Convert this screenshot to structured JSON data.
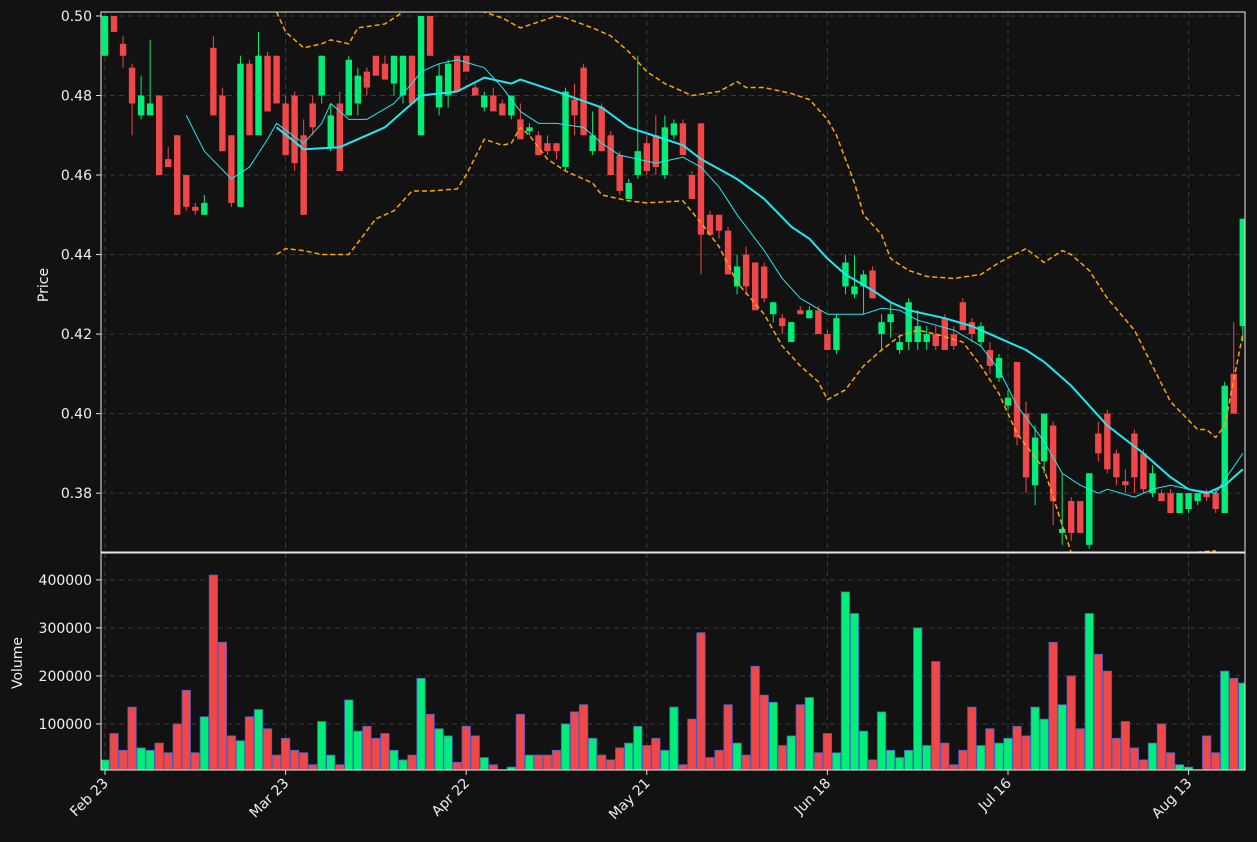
{
  "chart_data": [
    {
      "type": "candlestick",
      "ylabel": "Price",
      "categories": [
        "Feb 23",
        null,
        null,
        null,
        null,
        null,
        null,
        null,
        null,
        null,
        null,
        null,
        null,
        null,
        null,
        null,
        null,
        null,
        null,
        null,
        "Mar 23",
        null,
        null,
        null,
        null,
        null,
        null,
        null,
        null,
        null,
        null,
        null,
        null,
        null,
        null,
        null,
        null,
        null,
        null,
        null,
        "Apr 22",
        null,
        null,
        null,
        null,
        null,
        null,
        null,
        null,
        null,
        null,
        null,
        null,
        null,
        null,
        null,
        null,
        null,
        null,
        null,
        "May 21",
        null,
        null,
        null,
        null,
        null,
        null,
        null,
        null,
        null,
        null,
        null,
        null,
        null,
        null,
        null,
        null,
        null,
        null,
        null,
        "Jun 18",
        null,
        null,
        null,
        null,
        null,
        null,
        null,
        null,
        null,
        null,
        null,
        null,
        null,
        null,
        null,
        null,
        null,
        null,
        null,
        "Jul 16",
        null,
        null,
        null,
        null,
        null,
        null,
        null,
        null,
        null,
        null,
        null,
        null,
        null,
        null,
        null,
        null,
        null,
        null,
        null,
        "Aug 13",
        null,
        null,
        null,
        null,
        null,
        null
      ],
      "open": [
        0.49,
        0.5,
        0.493,
        0.487,
        0.475,
        0.475,
        0.48,
        0.464,
        0.47,
        0.46,
        0.452,
        0.45,
        0.492,
        0.48,
        0.47,
        0.452,
        0.488,
        0.47,
        0.49,
        0.49,
        0.478,
        0.48,
        0.47,
        0.478,
        0.48,
        0.467,
        0.478,
        0.475,
        0.478,
        0.486,
        0.49,
        0.488,
        0.483,
        0.48,
        0.49,
        0.47,
        0.5,
        0.477,
        0.48,
        0.49,
        0.49,
        0.482,
        0.477,
        0.48,
        0.478,
        0.475,
        0.474,
        0.471,
        0.47,
        0.468,
        0.468,
        0.462,
        0.479,
        0.487,
        0.466,
        0.477,
        0.47,
        0.465,
        0.454,
        0.46,
        0.468,
        0.47,
        0.46,
        0.47,
        0.473,
        0.46,
        0.473,
        0.45,
        0.45,
        0.446,
        0.432,
        0.44,
        0.438,
        0.437,
        0.425,
        0.424,
        0.418,
        0.426,
        0.424,
        0.426,
        0.42,
        0.416,
        0.432,
        0.43,
        0.432,
        0.436,
        0.42,
        0.423,
        0.416,
        0.418,
        0.418,
        0.418,
        0.42,
        0.424,
        0.42,
        0.428,
        0.423,
        0.418,
        0.416,
        0.409,
        0.402,
        0.413,
        0.4,
        0.382,
        0.388,
        0.397,
        0.37,
        0.378,
        0.378,
        0.367,
        0.395,
        0.4,
        0.39,
        0.383,
        0.395,
        0.39,
        0.38,
        0.38,
        0.38,
        0.375,
        0.376,
        0.378,
        0.38,
        0.38,
        0.375,
        0.41,
        0.422
      ],
      "high": [
        0.5,
        0.5,
        0.495,
        0.488,
        0.485,
        0.494,
        0.48,
        0.467,
        0.47,
        0.46,
        0.453,
        0.455,
        0.495,
        0.482,
        0.47,
        0.49,
        0.489,
        0.496,
        0.491,
        0.49,
        0.48,
        0.481,
        0.474,
        0.48,
        0.49,
        0.478,
        0.481,
        0.49,
        0.487,
        0.487,
        0.49,
        0.49,
        0.49,
        0.49,
        0.49,
        0.5,
        0.5,
        0.488,
        0.489,
        0.49,
        0.49,
        0.483,
        0.481,
        0.482,
        0.479,
        0.48,
        0.478,
        0.473,
        0.471,
        0.47,
        0.468,
        0.482,
        0.483,
        0.488,
        0.476,
        0.478,
        0.471,
        0.466,
        0.459,
        0.49,
        0.47,
        0.475,
        0.475,
        0.474,
        0.474,
        0.461,
        0.473,
        0.451,
        0.45,
        0.447,
        0.44,
        0.442,
        0.438,
        0.438,
        0.428,
        0.425,
        0.423,
        0.427,
        0.427,
        0.427,
        0.421,
        0.425,
        0.44,
        0.44,
        0.436,
        0.437,
        0.425,
        0.428,
        0.42,
        0.429,
        0.426,
        0.422,
        0.422,
        0.425,
        0.422,
        0.429,
        0.424,
        0.423,
        0.418,
        0.415,
        0.406,
        0.413,
        0.403,
        0.397,
        0.4,
        0.398,
        0.385,
        0.379,
        0.378,
        0.385,
        0.398,
        0.401,
        0.391,
        0.386,
        0.396,
        0.391,
        0.387,
        0.381,
        0.381,
        0.38,
        0.38,
        0.38,
        0.381,
        0.381,
        0.408,
        0.423,
        0.449
      ],
      "low": [
        0.49,
        0.496,
        0.487,
        0.47,
        0.474,
        0.475,
        0.46,
        0.462,
        0.45,
        0.451,
        0.45,
        0.45,
        0.475,
        0.466,
        0.452,
        0.452,
        0.47,
        0.47,
        0.476,
        0.478,
        0.465,
        0.461,
        0.45,
        0.47,
        0.478,
        0.466,
        0.461,
        0.475,
        0.475,
        0.48,
        0.485,
        0.484,
        0.48,
        0.478,
        0.478,
        0.47,
        0.49,
        0.475,
        0.477,
        0.481,
        0.486,
        0.48,
        0.476,
        0.476,
        0.475,
        0.474,
        0.469,
        0.47,
        0.465,
        0.465,
        0.464,
        0.461,
        0.47,
        0.47,
        0.465,
        0.466,
        0.46,
        0.455,
        0.454,
        0.459,
        0.46,
        0.46,
        0.459,
        0.469,
        0.465,
        0.454,
        0.435,
        0.445,
        0.444,
        0.435,
        0.43,
        0.43,
        0.426,
        0.428,
        0.423,
        0.42,
        0.418,
        0.425,
        0.424,
        0.42,
        0.416,
        0.415,
        0.43,
        0.429,
        0.425,
        0.429,
        0.416,
        0.419,
        0.415,
        0.416,
        0.416,
        0.416,
        0.416,
        0.416,
        0.416,
        0.421,
        0.418,
        0.417,
        0.41,
        0.408,
        0.401,
        0.392,
        0.38,
        0.377,
        0.385,
        0.372,
        0.367,
        0.368,
        0.37,
        0.366,
        0.388,
        0.385,
        0.382,
        0.38,
        0.38,
        0.38,
        0.379,
        0.378,
        0.375,
        0.375,
        0.375,
        0.377,
        0.378,
        0.375,
        0.375,
        0.4,
        0.418
      ],
      "close": [
        0.5,
        0.496,
        0.49,
        0.478,
        0.48,
        0.478,
        0.46,
        0.462,
        0.45,
        0.452,
        0.451,
        0.453,
        0.475,
        0.466,
        0.453,
        0.488,
        0.47,
        0.49,
        0.476,
        0.478,
        0.465,
        0.463,
        0.45,
        0.472,
        0.49,
        0.475,
        0.461,
        0.489,
        0.485,
        0.482,
        0.485,
        0.484,
        0.49,
        0.49,
        0.478,
        0.5,
        0.49,
        0.485,
        0.488,
        0.481,
        0.486,
        0.48,
        0.48,
        0.476,
        0.475,
        0.48,
        0.469,
        0.472,
        0.465,
        0.466,
        0.466,
        0.481,
        0.475,
        0.47,
        0.47,
        0.466,
        0.46,
        0.456,
        0.458,
        0.466,
        0.461,
        0.462,
        0.472,
        0.473,
        0.465,
        0.454,
        0.445,
        0.445,
        0.446,
        0.435,
        0.437,
        0.432,
        0.426,
        0.429,
        0.428,
        0.422,
        0.423,
        0.425,
        0.426,
        0.42,
        0.416,
        0.424,
        0.438,
        0.432,
        0.435,
        0.429,
        0.423,
        0.425,
        0.418,
        0.428,
        0.422,
        0.42,
        0.417,
        0.416,
        0.417,
        0.421,
        0.42,
        0.422,
        0.412,
        0.414,
        0.404,
        0.394,
        0.384,
        0.394,
        0.4,
        0.378,
        0.371,
        0.37,
        0.37,
        0.385,
        0.39,
        0.386,
        0.384,
        0.382,
        0.384,
        0.381,
        0.385,
        0.378,
        0.375,
        0.38,
        0.38,
        0.38,
        0.379,
        0.376,
        0.407,
        0.4,
        0.449
      ],
      "up_color": "#00ee77",
      "down_color": "#f04848",
      "lines": [
        {
          "color": "#20e8f0",
          "width": 1,
          "dash": false,
          "x": [
            9,
            11,
            14,
            16,
            18,
            19,
            22,
            24,
            25,
            27,
            29,
            32,
            34,
            35,
            37,
            39,
            42,
            44,
            46,
            48,
            50,
            53,
            55,
            57,
            59,
            61,
            64,
            66,
            68,
            70,
            73,
            75,
            77,
            80,
            84,
            86,
            88,
            90,
            94,
            97,
            99,
            101,
            104,
            106,
            108,
            110,
            111,
            114,
            116,
            118,
            120,
            123,
            126
          ],
          "values": [
            0.475,
            0.466,
            0.459,
            0.462,
            0.469,
            0.473,
            0.468,
            0.473,
            0.478,
            0.474,
            0.474,
            0.478,
            0.483,
            0.486,
            0.488,
            0.489,
            0.487,
            0.482,
            0.476,
            0.473,
            0.473,
            0.472,
            0.468,
            0.465,
            0.464,
            0.463,
            0.4645,
            0.462,
            0.457,
            0.45,
            0.441,
            0.434,
            0.429,
            0.425,
            0.425,
            0.4265,
            0.426,
            0.4235,
            0.421,
            0.417,
            0.411,
            0.402,
            0.393,
            0.385,
            0.382,
            0.38,
            0.381,
            0.379,
            0.381,
            0.382,
            0.381,
            0.38,
            0.39
          ]
        },
        {
          "color": "#20e8f0",
          "width": 2,
          "dash": false,
          "x": [
            19,
            22,
            26,
            31,
            35,
            39,
            42,
            45,
            46,
            50,
            55,
            58,
            62,
            64,
            66,
            70,
            73,
            76,
            78,
            80,
            82,
            85,
            87,
            89,
            93,
            96,
            98,
            100,
            102,
            104,
            107,
            109,
            111,
            115,
            118,
            120,
            122,
            124,
            126
          ],
          "values": [
            0.472,
            0.4665,
            0.467,
            0.472,
            0.48,
            0.481,
            0.4845,
            0.483,
            0.484,
            0.481,
            0.477,
            0.472,
            0.469,
            0.4675,
            0.464,
            0.459,
            0.454,
            0.447,
            0.444,
            0.439,
            0.435,
            0.431,
            0.428,
            0.426,
            0.424,
            0.422,
            0.42,
            0.418,
            0.416,
            0.413,
            0.407,
            0.402,
            0.397,
            0.39,
            0.384,
            0.381,
            0.38,
            0.382,
            0.386
          ]
        },
        {
          "color": "#ffa500",
          "width": 1.5,
          "dash": true,
          "x": [
            19,
            20,
            22,
            24,
            25,
            27,
            28,
            31,
            33,
            37,
            42,
            44,
            46,
            48,
            50,
            51,
            54,
            56,
            58,
            60,
            62,
            65,
            68,
            70,
            71,
            73,
            76,
            78,
            80,
            81,
            83,
            84,
            86,
            87,
            89,
            91,
            94,
            97,
            99,
            102,
            104,
            106,
            107,
            109,
            111,
            114,
            116,
            118,
            121,
            122,
            123,
            124,
            126
          ],
          "values": [
            0.501,
            0.496,
            0.492,
            0.493,
            0.494,
            0.493,
            0.497,
            0.498,
            0.501,
            0.503,
            0.501,
            0.4995,
            0.497,
            0.4985,
            0.5,
            0.4995,
            0.497,
            0.495,
            0.491,
            0.486,
            0.483,
            0.48,
            0.481,
            0.4835,
            0.482,
            0.482,
            0.4805,
            0.479,
            0.474,
            0.47,
            0.458,
            0.45,
            0.445,
            0.439,
            0.436,
            0.4345,
            0.434,
            0.435,
            0.438,
            0.4415,
            0.438,
            0.441,
            0.44,
            0.436,
            0.429,
            0.421,
            0.412,
            0.403,
            0.396,
            0.396,
            0.394,
            0.397,
            0.42
          ]
        },
        {
          "color": "#ffa500",
          "width": 1.5,
          "dash": true,
          "x": [
            19,
            20,
            22,
            24,
            27,
            28,
            30,
            32,
            34,
            36,
            39,
            40,
            42,
            44,
            45,
            46,
            47,
            49,
            51,
            54,
            55,
            58,
            60,
            64,
            66,
            68,
            70,
            73,
            75,
            77,
            79,
            80,
            82,
            84,
            86,
            88,
            90,
            92,
            95,
            97,
            99,
            101,
            104,
            106,
            107,
            110,
            120,
            123
          ],
          "values": [
            0.44,
            0.4415,
            0.441,
            0.44,
            0.44,
            0.443,
            0.449,
            0.451,
            0.456,
            0.456,
            0.4565,
            0.46,
            0.469,
            0.4675,
            0.468,
            0.472,
            0.47,
            0.464,
            0.461,
            0.458,
            0.455,
            0.4535,
            0.453,
            0.4535,
            0.448,
            0.442,
            0.433,
            0.425,
            0.417,
            0.412,
            0.408,
            0.4035,
            0.406,
            0.412,
            0.416,
            0.4195,
            0.421,
            0.42,
            0.418,
            0.412,
            0.405,
            0.395,
            0.386,
            0.372,
            0.365,
            null,
            0.365,
            0.3655
          ]
        }
      ],
      "ylim": [
        0.3652,
        0.501
      ],
      "yticks": [
        0.38,
        {
          "value": 0.4,
          "label": "0.40"
        },
        0.42,
        0.44,
        0.46,
        0.48,
        {
          "value": 0.5,
          "label": "0.50"
        }
      ],
      "grid": true
    },
    {
      "type": "bar",
      "ylabel": "Volume",
      "edgecolor": "#4a5fc8",
      "values": [
        25000,
        80000,
        45000,
        135000,
        50000,
        45000,
        60000,
        40000,
        100000,
        170000,
        40000,
        115000,
        410000,
        270000,
        75000,
        65000,
        115000,
        130000,
        90000,
        35000,
        70000,
        45000,
        40000,
        15000,
        105000,
        35000,
        15000,
        150000,
        85000,
        95000,
        70000,
        80000,
        45000,
        25000,
        35000,
        195000,
        120000,
        90000,
        75000,
        20000,
        95000,
        75000,
        30000,
        15000,
        5000,
        10000,
        120000,
        35000,
        35000,
        35000,
        45000,
        100000,
        125000,
        140000,
        70000,
        35000,
        25000,
        50000,
        60000,
        95000,
        55000,
        70000,
        45000,
        135000,
        15000,
        110000,
        290000,
        30000,
        45000,
        140000,
        60000,
        35000,
        220000,
        160000,
        145000,
        55000,
        75000,
        140000,
        155000,
        40000,
        80000,
        40000,
        375000,
        330000,
        85000,
        25000,
        125000,
        45000,
        30000,
        45000,
        300000,
        55000,
        230000,
        60000,
        15000,
        45000,
        135000,
        55000,
        90000,
        60000,
        70000,
        95000,
        75000,
        135000,
        110000,
        270000,
        140000,
        200000,
        90000,
        330000,
        245000,
        210000,
        70000,
        105000,
        50000,
        25000,
        60000,
        100000,
        40000,
        15000,
        10000,
        5000,
        75000,
        40000,
        210000,
        195000,
        185000
      ],
      "ylim": [
        4000,
        456000
      ],
      "yticks": [
        100000,
        200000,
        300000,
        400000
      ],
      "grid": true
    }
  ]
}
